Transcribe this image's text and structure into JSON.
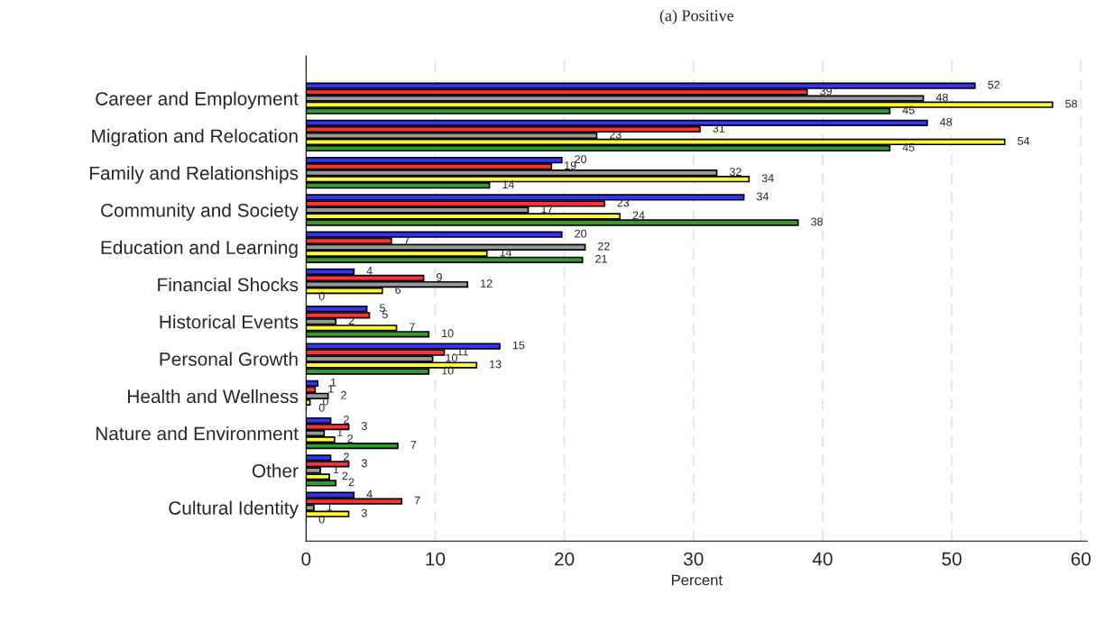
{
  "chart_data": {
    "type": "bar",
    "orientation": "horizontal",
    "title": "(a) Positive",
    "xlabel": "Percent",
    "categories": [
      "Career and Employment",
      "Migration and Relocation",
      "Family and Relationships",
      "Community and Society",
      "Education and Learning",
      "Financial Shocks",
      "Historical Events",
      "Personal Growth",
      "Health and Wellness",
      "Nature and Environment",
      "Other",
      "Cultural Identity"
    ],
    "series": [
      {
        "color": "#3333ff",
        "values": [
          51.8,
          48.1,
          19.8,
          33.9,
          19.8,
          3.7,
          4.7,
          15.0,
          0.9,
          1.9,
          1.9,
          3.7
        ],
        "value_labels": [
          "52",
          "48",
          "20",
          "34",
          "20",
          "4",
          "5",
          "15",
          "1",
          "2",
          "2",
          "4"
        ]
      },
      {
        "color": "#ff3333",
        "values": [
          38.8,
          30.5,
          19.0,
          23.1,
          6.6,
          9.1,
          4.9,
          10.7,
          0.7,
          3.3,
          3.3,
          7.4
        ],
        "value_labels": [
          "39",
          "31",
          "19",
          "23",
          "7",
          "9",
          "5",
          "11",
          "1",
          "3",
          "3",
          "7"
        ]
      },
      {
        "color": "#999999",
        "values": [
          47.8,
          22.5,
          31.8,
          17.2,
          21.6,
          12.5,
          2.3,
          9.8,
          1.7,
          1.4,
          1.1,
          0.6
        ],
        "value_labels": [
          "48",
          "23",
          "32",
          "17",
          "22",
          "12",
          "2",
          "10",
          "2",
          "1",
          "1",
          "1"
        ]
      },
      {
        "color": "#ffff33",
        "values": [
          57.8,
          54.1,
          34.3,
          24.3,
          14.0,
          5.9,
          7.0,
          13.2,
          0.3,
          2.2,
          1.8,
          3.3
        ],
        "value_labels": [
          "58",
          "54",
          "34",
          "24",
          "14",
          "6",
          "7",
          "13",
          "0",
          "2",
          "2",
          "3"
        ]
      },
      {
        "color": "#339933",
        "values": [
          45.2,
          45.2,
          14.2,
          38.1,
          21.4,
          0,
          9.5,
          9.5,
          0,
          7.1,
          2.3,
          0
        ],
        "value_labels": [
          "45",
          "45",
          "14",
          "38",
          "21",
          "0",
          "10",
          "10",
          "0",
          "7",
          "2",
          "0"
        ]
      }
    ],
    "xlim": [
      0,
      60.5
    ],
    "xticks": [
      0,
      10,
      20,
      30,
      40,
      50,
      60
    ],
    "grid": "x"
  }
}
